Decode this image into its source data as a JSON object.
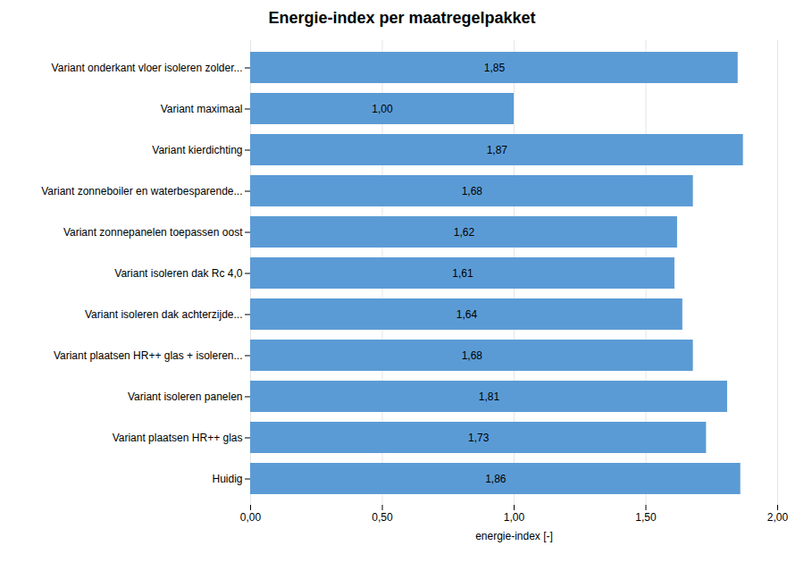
{
  "chart_data": {
    "type": "bar",
    "orientation": "horizontal",
    "title": "Energie-index per maatregelpakket",
    "xlabel": "energie-index [-]",
    "categories": [
      "Huidig",
      "Variant plaatsen HR++ glas",
      "Variant isoleren panelen",
      "Variant plaatsen HR++ glas + isoleren...",
      "Variant isoleren dak achterzijde...",
      "Variant isoleren dak Rc 4,0",
      "Variant zonnepanelen toepassen oost",
      "Variant zonneboiler en waterbesparende...",
      "Variant kierdichting",
      "Variant maximaal",
      "Variant onderkant vloer isoleren zolder..."
    ],
    "values": [
      1.86,
      1.73,
      1.81,
      1.68,
      1.64,
      1.61,
      1.62,
      1.68,
      1.87,
      1.0,
      1.85
    ],
    "value_labels": [
      "1,86",
      "1,73",
      "1,81",
      "1,68",
      "1,64",
      "1,61",
      "1,62",
      "1,68",
      "1,87",
      "1,00",
      "1,85"
    ],
    "data_labels": true,
    "color": "#5B9BD5",
    "xlim": [
      0,
      2.0
    ],
    "xticks": [
      {
        "value": 0.0,
        "label": "0,00"
      },
      {
        "value": 0.5,
        "label": "0,50"
      },
      {
        "value": 1.0,
        "label": "1,00"
      },
      {
        "value": 1.5,
        "label": "1,50"
      },
      {
        "value": 2.0,
        "label": "2,00"
      }
    ],
    "grid": true
  }
}
